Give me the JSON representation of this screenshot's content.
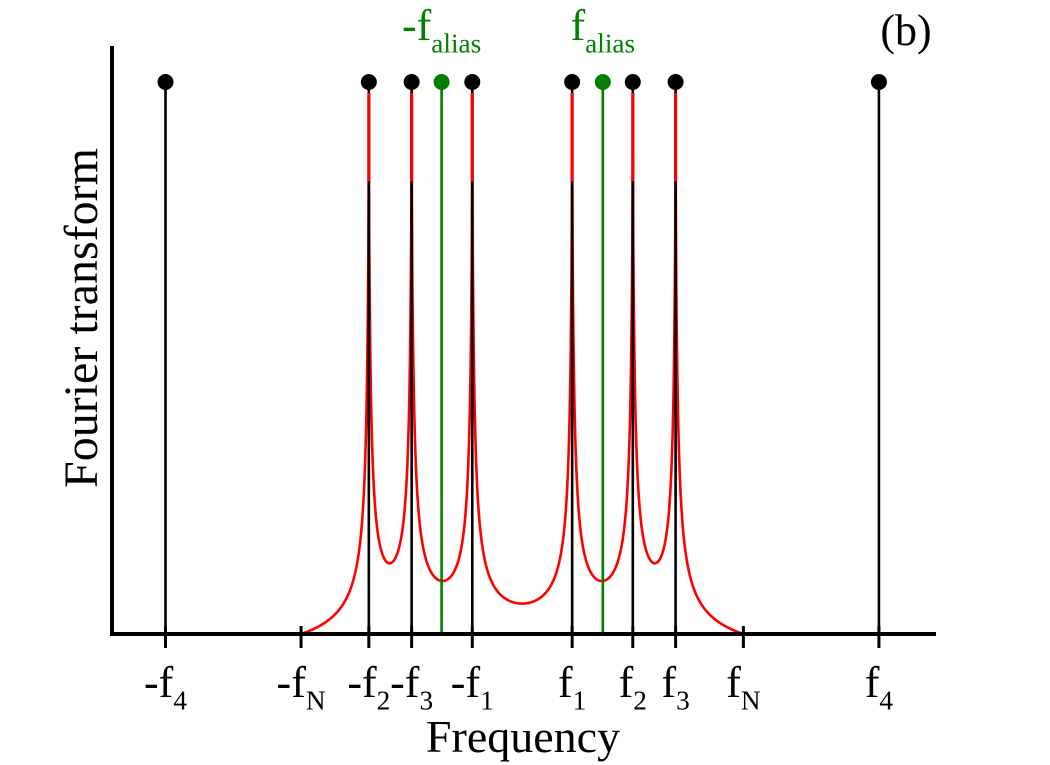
{
  "chart_data": {
    "type": "line",
    "panel_label": "(b)",
    "xlabel": "Frequency",
    "ylabel": "Fourier transform",
    "xlim": [
      -5.75,
      5.8
    ],
    "ylim": [
      0,
      1.0
    ],
    "grid": false,
    "ticks": [
      {
        "x": -5.0,
        "base": "-f",
        "sub": "4"
      },
      {
        "x": -3.1,
        "base": "-f",
        "sub": "N"
      },
      {
        "x": -2.15,
        "base": "-f",
        "sub": "2"
      },
      {
        "x": -1.55,
        "base": "-f",
        "sub": "3"
      },
      {
        "x": -0.7,
        "base": "-f",
        "sub": "1"
      },
      {
        "x": 0.7,
        "base": "f",
        "sub": "1"
      },
      {
        "x": 1.55,
        "base": "f",
        "sub": "2"
      },
      {
        "x": 2.15,
        "base": "f",
        "sub": "3"
      },
      {
        "x": 3.1,
        "base": "f",
        "sub": "N"
      },
      {
        "x": 5.0,
        "base": "f",
        "sub": "4"
      }
    ],
    "alias_labels": [
      {
        "x": -1.13,
        "base": "-f",
        "sub": "alias"
      },
      {
        "x": 1.13,
        "base": "f",
        "sub": "alias"
      }
    ],
    "series": [
      {
        "kind": "spikes",
        "color": "#000000",
        "x": [
          -5.0,
          -2.15,
          -1.55,
          -0.7,
          0.7,
          1.55,
          2.15,
          5.0
        ],
        "y": [
          1,
          1,
          1,
          1,
          1,
          1,
          1,
          1
        ],
        "marker": "circle"
      },
      {
        "kind": "spikes",
        "color": "#008000",
        "x": [
          -1.13,
          1.13
        ],
        "y": [
          1,
          1
        ],
        "marker": "circle"
      },
      {
        "kind": "lorentzian-spectrum",
        "color": "#ff0000",
        "x_range": [
          -3.1,
          3.1
        ],
        "peaks": [
          -2.15,
          -1.55,
          -0.7,
          0.7,
          1.55,
          2.15
        ],
        "peak_height": 0.98
      }
    ]
  }
}
